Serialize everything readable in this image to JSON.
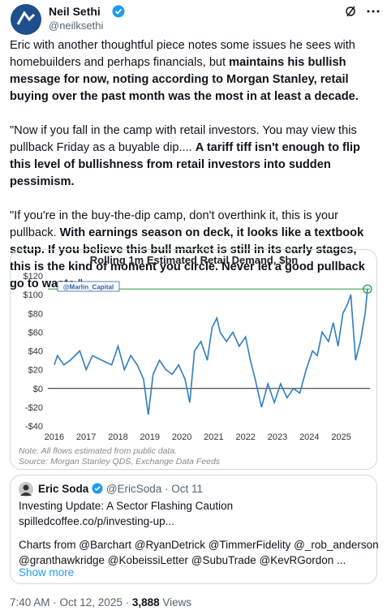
{
  "header": {
    "name": "Neil Sethi",
    "handle": "@neilksethi"
  },
  "body": {
    "paragraphs": [
      [
        {
          "text": "Eric with another thoughtful piece notes some issues he sees with homebuilders and perhaps financials, but ",
          "bold": false
        },
        {
          "text": "maintains his bullish message for now, noting according to Morgan Stanley, retail buying over the past month was the most in at least a decade.",
          "bold": true
        }
      ],
      [
        {
          "text": "\"Now if you fall in the camp with retail investors. You may view this pullback Friday as a buyable dip.... ",
          "bold": false
        },
        {
          "text": "A tariff tiff isn't enough to flip this level of bullishness from retail investors into sudden pessimism.",
          "bold": true
        }
      ],
      [
        {
          "text": "\"If you're in the buy-the-dip camp, don't overthink it, this is your pullback. ",
          "bold": false
        },
        {
          "text": "With earnings season on deck, it looks like a textbook setup. If you believe this bull market is still in its early stages, this is the kind of moment you circle. Never let a good pullback go to waste.",
          "bold": true
        },
        {
          "text": "\"",
          "bold": false
        }
      ]
    ]
  },
  "chart_data": {
    "type": "line",
    "title": "Rolling 1m Estimated Retail Demand, $bn",
    "annotation": "@Marlin_Capital",
    "note": "Note:  All flows estimated from public data.",
    "source": "Source: Morgan Stanley QDS, Exchange Data Feeds",
    "xlim": [
      2015.8,
      2025.9
    ],
    "xticks": [
      2016,
      2017,
      2018,
      2019,
      2020,
      2021,
      2022,
      2023,
      2024,
      2025
    ],
    "ylim": [
      -40,
      120
    ],
    "yticks": [
      {
        "value": -40,
        "label": "-$40"
      },
      {
        "value": -20,
        "label": "-$20"
      },
      {
        "value": 0,
        "label": "$0"
      },
      {
        "value": 20,
        "label": "$20"
      },
      {
        "value": 40,
        "label": "$40"
      },
      {
        "value": 60,
        "label": "$60"
      },
      {
        "value": 80,
        "label": "$80"
      },
      {
        "value": 100,
        "label": "$100"
      },
      {
        "value": 120,
        "label": "$120"
      }
    ],
    "reference_line": 106,
    "reference_color": "#3aa655",
    "series": [
      {
        "color": "#2f7dc0",
        "x": [
          2016.0,
          2016.1,
          2016.3,
          2016.5,
          2016.8,
          2017.0,
          2017.2,
          2017.5,
          2017.8,
          2018.0,
          2018.2,
          2018.4,
          2018.6,
          2018.8,
          2018.95,
          2019.1,
          2019.3,
          2019.5,
          2019.7,
          2019.9,
          2020.1,
          2020.25,
          2020.4,
          2020.6,
          2020.8,
          2020.95,
          2021.1,
          2021.2,
          2021.4,
          2021.6,
          2021.8,
          2022.0,
          2022.15,
          2022.3,
          2022.5,
          2022.7,
          2022.9,
          2023.1,
          2023.3,
          2023.5,
          2023.7,
          2023.9,
          2024.1,
          2024.25,
          2024.4,
          2024.6,
          2024.75,
          2024.9,
          2025.05,
          2025.2,
          2025.3,
          2025.45,
          2025.6,
          2025.75,
          2025.82
        ],
        "values": [
          25,
          35,
          25,
          30,
          40,
          20,
          35,
          30,
          25,
          45,
          20,
          35,
          25,
          10,
          -28,
          15,
          30,
          20,
          15,
          25,
          10,
          -15,
          40,
          50,
          30,
          65,
          75,
          60,
          50,
          60,
          45,
          55,
          30,
          10,
          -20,
          5,
          -15,
          5,
          -10,
          0,
          -5,
          20,
          40,
          35,
          60,
          50,
          70,
          45,
          80,
          90,
          100,
          30,
          50,
          80,
          106
        ]
      }
    ]
  },
  "quote": {
    "name": "Eric Soda",
    "meta": "@EricSoda · Oct 11",
    "lines": [
      "Investing Update: A Sector Flashing Caution",
      "spilledcoffee.co/p/investing-up...",
      "Charts from @Barchart @RyanDetrick @TimmerFidelity @_rob_anderson",
      "@granthawkridge @KobeissiLetter @SubuTrade @KevRGordon ..."
    ],
    "more": "Show more"
  },
  "footer": {
    "time": "7:40 AM · Oct 12, 2025 ·",
    "views": "3,888",
    "views_label": "Views"
  }
}
